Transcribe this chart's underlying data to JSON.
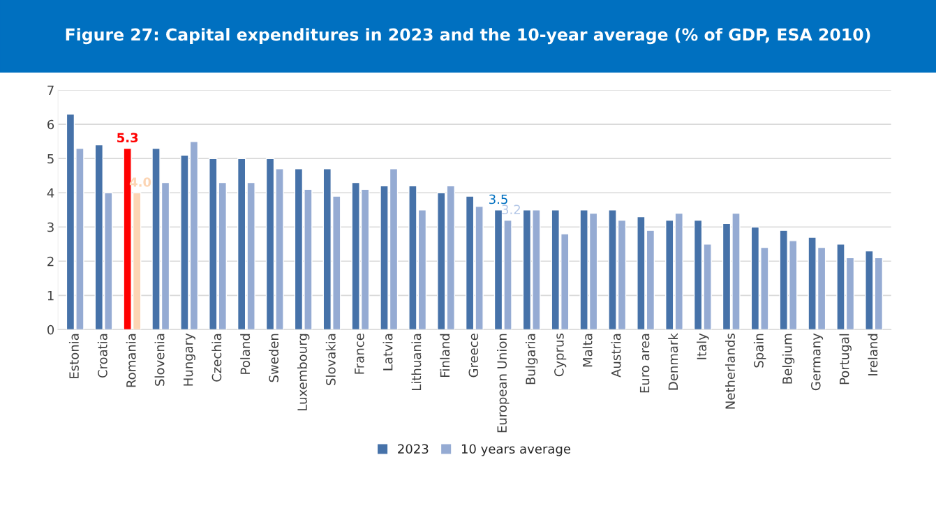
{
  "chart_data": {
    "type": "bar",
    "title": "Figure 27: Capital expenditures in 2023 and the 10-year average (% of GDP, ESA 2010)",
    "categories": [
      "Estonia",
      "Croatia",
      "Romania",
      "Slovenia",
      "Hungary",
      "Czechia",
      "Poland",
      "Sweden",
      "Luxembourg",
      "Slovakia",
      "France",
      "Latvia",
      "Lithuania",
      "Finland",
      "Greece",
      "European Union",
      "Bulgaria",
      "Cyprus",
      "Malta",
      "Austria",
      "Euro area",
      "Denmark",
      "Italy",
      "Netherlands",
      "Spain",
      "Belgium",
      "Germany",
      "Portugal",
      "Ireland"
    ],
    "series": [
      {
        "name": "2023",
        "color": "#4672a9",
        "colors": [
          "#4672a9",
          "#4672a9",
          "#ff0000",
          "#4672a9",
          "#4672a9",
          "#4672a9",
          "#4672a9",
          "#4672a9",
          "#4672a9",
          "#4672a9",
          "#4672a9",
          "#4672a9",
          "#4672a9",
          "#4672a9",
          "#4672a9",
          "#4672a9",
          "#4672a9",
          "#4672a9",
          "#4672a9",
          "#4672a9",
          "#4672a9",
          "#4672a9",
          "#4672a9",
          "#4672a9",
          "#4672a9",
          "#4672a9",
          "#4672a9",
          "#4672a9",
          "#4672a9"
        ],
        "values": [
          6.3,
          5.4,
          5.3,
          5.3,
          5.1,
          5.0,
          5.0,
          5.0,
          4.7,
          4.7,
          4.3,
          4.2,
          4.2,
          4.0,
          3.9,
          3.5,
          3.5,
          3.5,
          3.5,
          3.5,
          3.3,
          3.2,
          3.2,
          3.1,
          3.0,
          2.9,
          2.7,
          2.5,
          2.3
        ],
        "value_labels": [
          null,
          null,
          "5.3",
          null,
          null,
          null,
          null,
          null,
          null,
          null,
          null,
          null,
          null,
          null,
          null,
          "3.5",
          null,
          null,
          null,
          null,
          null,
          null,
          null,
          null,
          null,
          null,
          null,
          null,
          null
        ]
      },
      {
        "name": "10 years average",
        "color": "#95abd3",
        "colors": [
          "#95abd3",
          "#95abd3",
          "#fcd5b4",
          "#95abd3",
          "#95abd3",
          "#95abd3",
          "#95abd3",
          "#95abd3",
          "#95abd3",
          "#95abd3",
          "#95abd3",
          "#95abd3",
          "#95abd3",
          "#95abd3",
          "#95abd3",
          "#95abd3",
          "#95abd3",
          "#95abd3",
          "#95abd3",
          "#95abd3",
          "#95abd3",
          "#95abd3",
          "#95abd3",
          "#95abd3",
          "#95abd3",
          "#95abd3",
          "#95abd3",
          "#95abd3",
          "#95abd3"
        ],
        "values": [
          5.3,
          4.0,
          4.0,
          4.3,
          5.5,
          4.3,
          4.3,
          4.7,
          4.1,
          3.9,
          4.1,
          4.7,
          3.5,
          4.2,
          3.6,
          3.2,
          3.5,
          2.8,
          3.4,
          3.2,
          2.9,
          3.4,
          2.5,
          3.4,
          2.4,
          2.6,
          2.4,
          2.1,
          2.1
        ],
        "value_labels": [
          null,
          null,
          "4.0",
          null,
          null,
          null,
          null,
          null,
          null,
          null,
          null,
          null,
          null,
          null,
          null,
          "3.2",
          null,
          null,
          null,
          null,
          null,
          null,
          null,
          null,
          null,
          null,
          null,
          null,
          null
        ]
      }
    ],
    "ylim": [
      0,
      7
    ],
    "yticks": [
      0,
      1,
      2,
      3,
      4,
      5,
      6,
      7
    ],
    "grid": "y",
    "legend": "bottom"
  }
}
